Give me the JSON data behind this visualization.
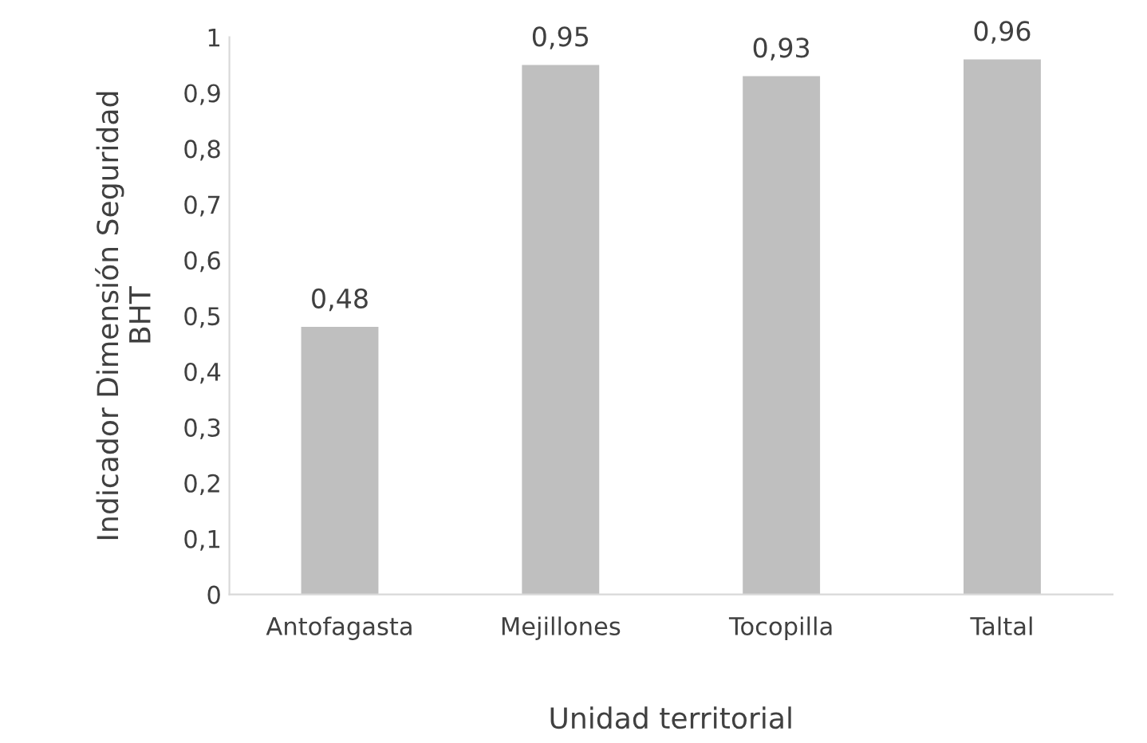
{
  "chart_data": {
    "type": "bar",
    "xlabel": "Unidad territorial",
    "ylabel": "Indicador Dimensión Seguridad\nBHT",
    "categories": [
      "Antofagasta",
      "Mejillones",
      "Tocopilla",
      "Taltal"
    ],
    "values": [
      0.48,
      0.95,
      0.93,
      0.96
    ],
    "value_labels": [
      "0,48",
      "0,95",
      "0,93",
      "0,96"
    ],
    "color": "#bfbfbf",
    "ylim": [
      0,
      1
    ],
    "yticks": [
      {
        "value": 0,
        "label": "0"
      },
      {
        "value": 0.1,
        "label": "0,1"
      },
      {
        "value": 0.2,
        "label": "0,2"
      },
      {
        "value": 0.3,
        "label": "0,3"
      },
      {
        "value": 0.4,
        "label": "0,4"
      },
      {
        "value": 0.5,
        "label": "0,5"
      },
      {
        "value": 0.6,
        "label": "0,6"
      },
      {
        "value": 0.7,
        "label": "0,7"
      },
      {
        "value": 0.8,
        "label": "0,8"
      },
      {
        "value": 0.9,
        "label": "0,9"
      },
      {
        "value": 1,
        "label": "1"
      }
    ],
    "grid": false
  }
}
